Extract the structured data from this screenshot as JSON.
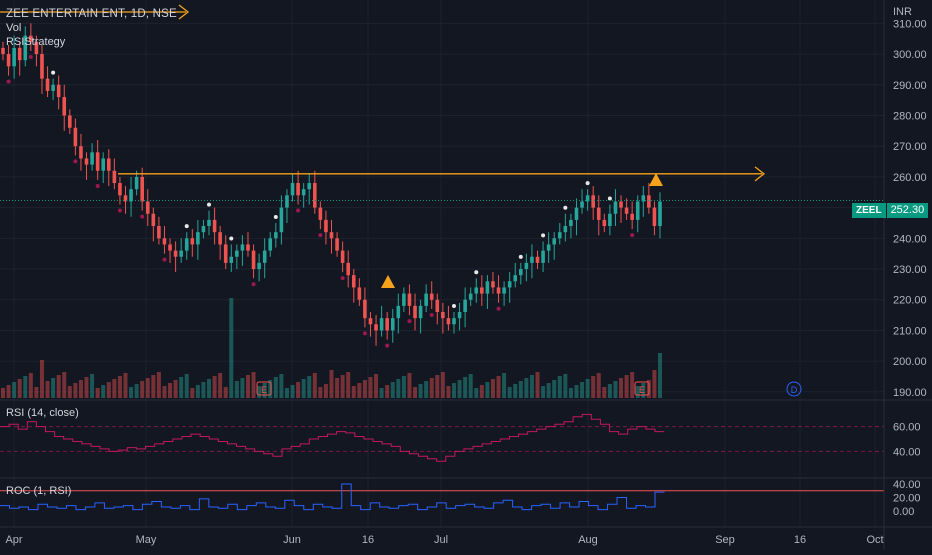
{
  "header": {
    "title": "ZEE ENTERTAIN ENT, 1D, NSE",
    "vol_label": "Vol",
    "strategy_label": "RSIStrategy",
    "currency": "INR"
  },
  "last_price": {
    "symbol": "ZEEL",
    "value": "252.30"
  },
  "rsi_pane": {
    "label": "RSI (14, close)",
    "ticks": [
      "60.00",
      "40.00"
    ]
  },
  "roc_pane": {
    "label": "ROC (1, RSI)",
    "ticks": [
      "40.00",
      "20.00",
      "0.00"
    ]
  },
  "colors": {
    "up": "#26a69a",
    "down": "#ef5350",
    "resistance": "#f7a21b",
    "rsi": "#c2185b",
    "roc": "#2962ff",
    "background": "#131722"
  },
  "chart_data": {
    "type": "candlestick",
    "yaxis_ticks": [
      "310.00",
      "300.00",
      "290.00",
      "280.00",
      "270.00",
      "260.00",
      "250.00",
      "240.00",
      "230.00",
      "220.00",
      "210.00",
      "200.00",
      "190.00"
    ],
    "ylim": [
      188,
      315
    ],
    "x_ticks": [
      "Apr",
      "May",
      "Jun",
      "16",
      "Jul",
      "Aug",
      "Sep",
      "16",
      "Oct"
    ],
    "resistance_level": 261,
    "last_close": 252.3,
    "events": [
      "E",
      "E",
      "D"
    ],
    "closes": [
      300,
      296,
      302,
      298,
      306,
      304,
      300,
      292,
      288,
      290,
      286,
      280,
      276,
      270,
      266,
      264,
      268,
      262,
      266,
      262,
      258,
      254,
      252,
      256,
      260,
      252,
      248,
      244,
      240,
      238,
      236,
      234,
      236,
      240,
      238,
      242,
      244,
      246,
      242,
      238,
      232,
      234,
      236,
      238,
      236,
      230,
      232,
      236,
      240,
      242,
      250,
      254,
      258,
      254,
      256,
      258,
      250,
      246,
      242,
      240,
      236,
      232,
      228,
      224,
      220,
      214,
      212,
      210,
      214,
      210,
      214,
      218,
      222,
      218,
      214,
      218,
      222,
      220,
      216,
      214,
      212,
      214,
      216,
      220,
      222,
      224,
      222,
      226,
      224,
      222,
      224,
      226,
      228,
      230,
      232,
      234,
      232,
      236,
      238,
      240,
      242,
      244,
      246,
      250,
      252,
      254,
      250,
      246,
      244,
      248,
      252,
      250,
      248,
      246,
      252,
      254,
      250,
      244,
      252
    ],
    "rsi": [
      60,
      62,
      58,
      64,
      60,
      56,
      52,
      50,
      48,
      46,
      44,
      42,
      40,
      41,
      43,
      42,
      44,
      46,
      48,
      50,
      52,
      54,
      52,
      50,
      48,
      46,
      44,
      42,
      40,
      38,
      36,
      42,
      44,
      46,
      50,
      52,
      54,
      56,
      55,
      52,
      50,
      48,
      46,
      44,
      40,
      38,
      36,
      34,
      32,
      36,
      40,
      42,
      44,
      46,
      48,
      50,
      52,
      54,
      56,
      58,
      60,
      62,
      64,
      68,
      70,
      66,
      62,
      56,
      54,
      58,
      60,
      58,
      56
    ],
    "roc": [
      8,
      4,
      6,
      2,
      10,
      6,
      4,
      8,
      2,
      6,
      12,
      4,
      6,
      8,
      2,
      10,
      14,
      6,
      4,
      8,
      2,
      18,
      6,
      4,
      10,
      2,
      8,
      12,
      6,
      4,
      16,
      8,
      2,
      10,
      6,
      4,
      40,
      8,
      2,
      12,
      6,
      4,
      8,
      10,
      2,
      6,
      12,
      4,
      8,
      10,
      6,
      4,
      12,
      16,
      6,
      2,
      8,
      10,
      4,
      12,
      6,
      14,
      8,
      2,
      10,
      20,
      4,
      8,
      6,
      28
    ]
  }
}
